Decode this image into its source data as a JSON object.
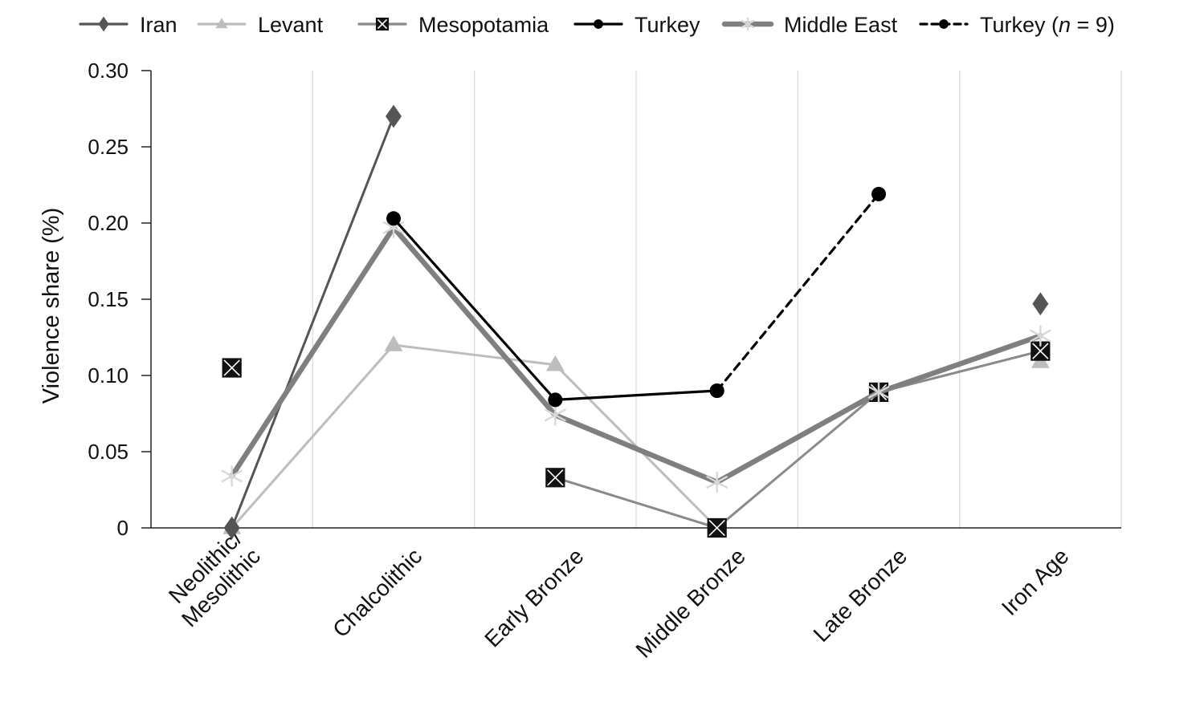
{
  "chart_data": {
    "type": "line",
    "title": "",
    "xlabel": "",
    "ylabel": "Violence share (%)",
    "ylim": [
      0,
      0.3
    ],
    "yticks": [
      0,
      0.05,
      0.1,
      0.15,
      0.2,
      0.25,
      0.3
    ],
    "ytick_labels": [
      "0",
      "0.05",
      "0.10",
      "0.15",
      "0.20",
      "0.25",
      "0.30"
    ],
    "grid": "vertical lines between categories",
    "legend_position": "top",
    "categories": [
      [
        "Neolithic/",
        "Mesolithic"
      ],
      [
        "Chalcolithic"
      ],
      [
        "Early Bronze"
      ],
      [
        "Middle Bronze"
      ],
      [
        "Late Bronze"
      ],
      [
        "Iron Age"
      ]
    ],
    "series": [
      {
        "name": "Iran",
        "key": "iran",
        "color": "#555555",
        "marker": "diamond",
        "dash": "solid",
        "values": [
          0.0,
          0.27,
          null,
          null,
          null,
          0.147
        ]
      },
      {
        "name": "Levant",
        "key": "levant",
        "color": "#bdbdbd",
        "marker": "triangle",
        "dash": "solid",
        "values": [
          0.0,
          0.12,
          0.107,
          0.0,
          null,
          0.109
        ]
      },
      {
        "name": "Mesopotamia",
        "key": "mesopotamia",
        "color": "#8a8a8a",
        "marker": "boxx",
        "dash": "solid",
        "values": [
          0.105,
          null,
          0.033,
          0.0,
          0.089,
          0.116
        ]
      },
      {
        "name": "Turkey",
        "key": "turkey",
        "color": "#000000",
        "marker": "circle",
        "dash": "solid",
        "values": [
          null,
          0.203,
          0.084,
          0.09,
          null,
          null
        ]
      },
      {
        "name": "Middle East",
        "key": "middle-east",
        "color": "#7f7f7f",
        "marker": "star",
        "dash": "solid",
        "values": [
          0.034,
          0.197,
          0.074,
          0.03,
          0.089,
          0.126
        ]
      },
      {
        "name": "Turkey (n = 9)",
        "key": "turkey-n9",
        "name_prefix": "Turkey (",
        "name_italic": "n",
        "name_suffix": " = 9)",
        "color": "#000000",
        "marker": "circle",
        "dash": "dashed",
        "values": [
          null,
          null,
          null,
          0.09,
          0.219,
          null
        ]
      }
    ]
  }
}
